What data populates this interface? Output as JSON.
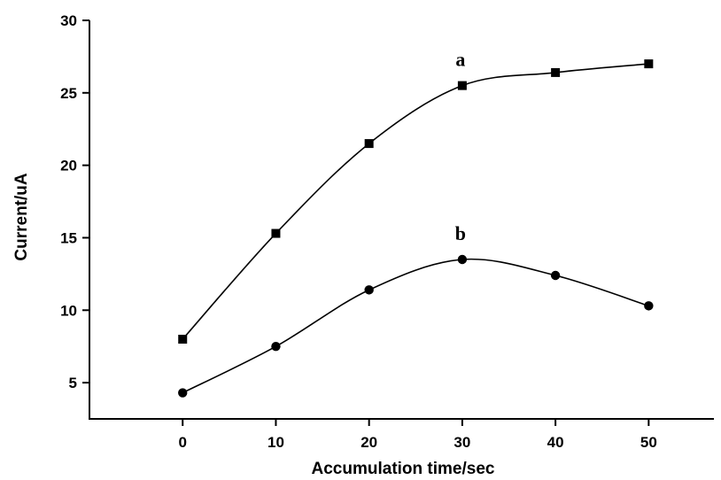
{
  "chart_data": {
    "type": "line",
    "xlabel": "Accumulation time/sec",
    "ylabel": "Current/uA",
    "x": [
      0,
      10,
      20,
      30,
      40,
      50
    ],
    "xlim": [
      -10,
      57
    ],
    "ylim": [
      2.5,
      30
    ],
    "xticks": [
      0,
      10,
      20,
      30,
      40,
      50
    ],
    "yticks": [
      5,
      10,
      15,
      20,
      25,
      30
    ],
    "xtick_labels": [
      "0",
      "10",
      "20",
      "30",
      "40",
      "50"
    ],
    "ytick_labels": [
      "5",
      "10",
      "15",
      "20",
      "25",
      "30"
    ],
    "grid": false,
    "series": [
      {
        "name": "a",
        "marker": "square",
        "values": [
          8.0,
          15.3,
          21.5,
          25.5,
          26.4,
          27.0
        ]
      },
      {
        "name": "b",
        "marker": "circle",
        "values": [
          4.3,
          7.5,
          11.4,
          13.5,
          12.4,
          10.3
        ]
      }
    ]
  }
}
